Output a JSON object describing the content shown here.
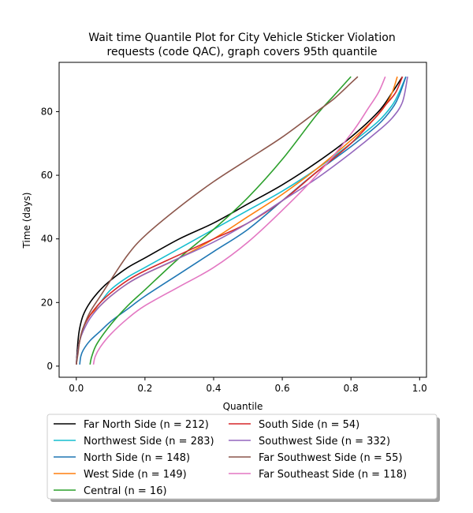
{
  "chart_data": {
    "type": "line",
    "title": "Wait time Quantile Plot for City Vehicle Sticker Violation requests (code QAC), graph covers 95th quantile",
    "title_lines": [
      "Wait time Quantile Plot for City Vehicle Sticker Violation",
      "requests (code QAC), graph covers 95th quantile"
    ],
    "xlabel": "Quantile",
    "ylabel": "Time (days)",
    "xlim": [
      -0.05,
      1.02
    ],
    "ylim": [
      -3.5,
      95.5
    ],
    "xticks": [
      0.0,
      0.2,
      0.4,
      0.6,
      0.8,
      1.0
    ],
    "xtick_labels": [
      "0.0",
      "0.2",
      "0.4",
      "0.6",
      "0.8",
      "1.0"
    ],
    "yticks": [
      0,
      20,
      40,
      60,
      80
    ],
    "ytick_labels": [
      "0",
      "20",
      "40",
      "60",
      "80"
    ],
    "grid": false,
    "legend": "bottom-center",
    "series": [
      {
        "name": "Far North Side (n = 212)",
        "color": "#000000",
        "x": [
          0.0,
          0.005,
          0.01,
          0.02,
          0.04,
          0.07,
          0.1,
          0.15,
          0.2,
          0.3,
          0.4,
          0.5,
          0.6,
          0.7,
          0.8,
          0.88,
          0.92,
          0.95
        ],
        "y": [
          0.5,
          8,
          12,
          16,
          20,
          24,
          27,
          31,
          34,
          40,
          45,
          51,
          57,
          64,
          72,
          80,
          86,
          91
        ]
      },
      {
        "name": "Northwest Side (n = 283)",
        "color": "#17becf",
        "x": [
          0.0,
          0.005,
          0.01,
          0.02,
          0.04,
          0.07,
          0.1,
          0.15,
          0.2,
          0.3,
          0.4,
          0.5,
          0.6,
          0.7,
          0.8,
          0.88,
          0.92,
          0.94,
          0.96
        ],
        "y": [
          0.5,
          5,
          8,
          12,
          16,
          20,
          24,
          28,
          31,
          37,
          43,
          49,
          55,
          62,
          70,
          77,
          82,
          86,
          91
        ]
      },
      {
        "name": "North Side (n = 148)",
        "color": "#1f77b4",
        "x": [
          0.01,
          0.013,
          0.02,
          0.04,
          0.07,
          0.1,
          0.15,
          0.2,
          0.3,
          0.4,
          0.5,
          0.6,
          0.7,
          0.8,
          0.88,
          0.92,
          0.94,
          0.96
        ],
        "y": [
          0.5,
          3,
          5,
          8,
          11,
          14,
          18,
          22,
          29,
          36,
          43,
          52,
          61,
          69,
          76,
          81,
          85,
          91
        ]
      },
      {
        "name": "West Side (n = 149)",
        "color": "#ff7f0e",
        "x": [
          0.0,
          0.005,
          0.01,
          0.02,
          0.04,
          0.07,
          0.1,
          0.15,
          0.2,
          0.3,
          0.4,
          0.5,
          0.6,
          0.7,
          0.8,
          0.87,
          0.9,
          0.92,
          0.935
        ],
        "y": [
          0.5,
          5,
          8,
          12,
          16,
          19,
          22,
          26,
          29,
          34,
          40,
          47,
          54,
          62,
          71,
          78,
          82,
          86,
          91
        ]
      },
      {
        "name": "Central (n = 16)",
        "color": "#2ca02c",
        "x": [
          0.04,
          0.045,
          0.06,
          0.1,
          0.15,
          0.2,
          0.3,
          0.4,
          0.5,
          0.6,
          0.7,
          0.75,
          0.8
        ],
        "y": [
          0.5,
          3,
          7,
          13,
          19,
          24,
          34,
          43,
          53,
          65,
          79,
          85,
          91
        ]
      },
      {
        "name": "South Side (n = 54)",
        "color": "#d62728",
        "x": [
          0.0,
          0.005,
          0.01,
          0.02,
          0.04,
          0.07,
          0.1,
          0.15,
          0.2,
          0.3,
          0.4,
          0.5,
          0.6,
          0.7,
          0.8,
          0.87,
          0.9,
          0.93,
          0.95
        ],
        "y": [
          0.5,
          5,
          8,
          12,
          16,
          20,
          23,
          27,
          30,
          35,
          40,
          45,
          52,
          61,
          70,
          78,
          82,
          86,
          91
        ]
      },
      {
        "name": "Southwest Side (n = 332)",
        "color": "#9467bd",
        "x": [
          0.0,
          0.005,
          0.01,
          0.02,
          0.04,
          0.07,
          0.1,
          0.15,
          0.2,
          0.3,
          0.4,
          0.5,
          0.6,
          0.7,
          0.8,
          0.88,
          0.92,
          0.95,
          0.965
        ],
        "y": [
          0.5,
          5,
          8,
          11,
          15,
          19,
          22,
          26,
          29,
          34,
          39,
          45,
          52,
          59,
          67,
          74,
          78,
          83,
          91
        ]
      },
      {
        "name": "Far Southwest Side (n = 55)",
        "color": "#8c564b",
        "x": [
          0.0,
          0.005,
          0.01,
          0.02,
          0.04,
          0.07,
          0.1,
          0.15,
          0.2,
          0.3,
          0.4,
          0.5,
          0.6,
          0.7,
          0.75,
          0.8,
          0.82
        ],
        "y": [
          0.5,
          4,
          8,
          12,
          17,
          22,
          27,
          35,
          41,
          50,
          58,
          65,
          72,
          80,
          84,
          89,
          91
        ]
      },
      {
        "name": "Far Southeast Side (n = 118)",
        "color": "#e377c2",
        "x": [
          0.05,
          0.055,
          0.07,
          0.1,
          0.15,
          0.2,
          0.3,
          0.4,
          0.5,
          0.6,
          0.7,
          0.8,
          0.85,
          0.88,
          0.9
        ],
        "y": [
          0.5,
          3,
          6,
          10,
          15,
          19,
          25,
          31,
          39,
          49,
          60,
          73,
          81,
          86,
          91
        ]
      }
    ]
  }
}
